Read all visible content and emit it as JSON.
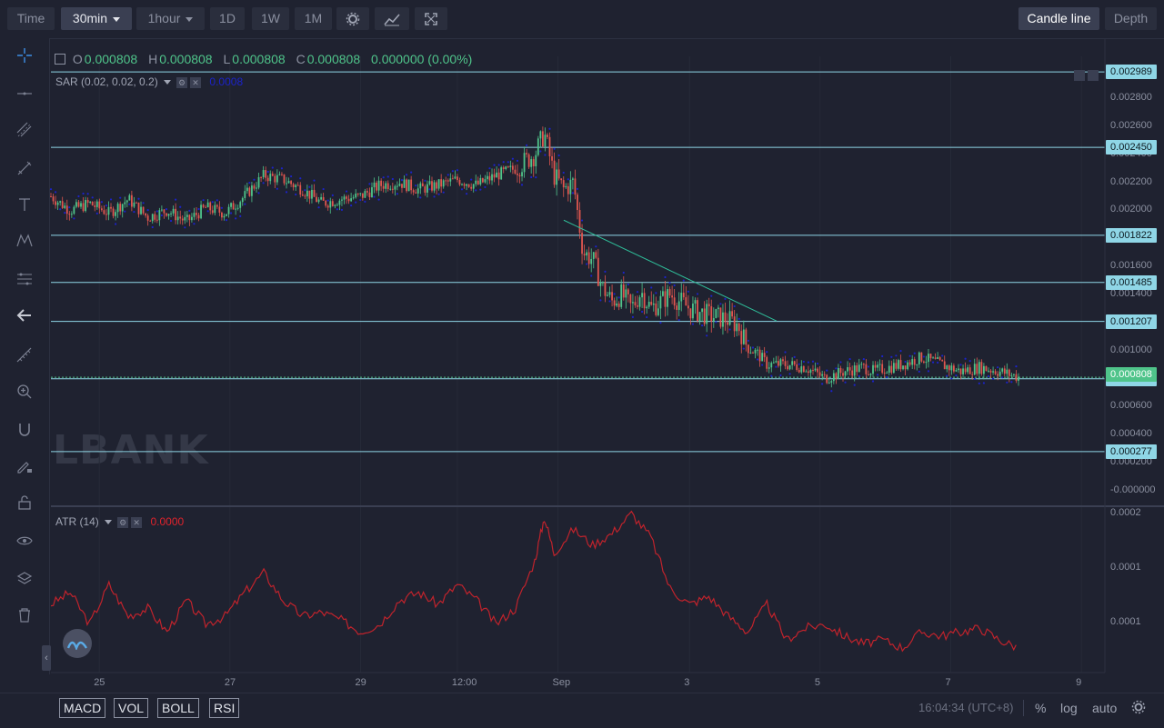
{
  "toolbar": {
    "time_label": "Time",
    "interval_30min": "30min",
    "interval_1hour": "1hour",
    "btn_1d": "1D",
    "btn_1w": "1W",
    "btn_1m": "1M",
    "candle_line": "Candle line",
    "depth": "Depth"
  },
  "ohlc": {
    "o_label": "O",
    "o_value": "0.000808",
    "h_label": "H",
    "h_value": "0.000808",
    "l_label": "L",
    "l_value": "0.000808",
    "c_label": "C",
    "c_value": "0.000808",
    "change": "0.000000 (0.00%)"
  },
  "indicators": {
    "sar_label": "SAR (0.02, 0.02, 0.2)",
    "sar_value": "0.0008",
    "atr_label": "ATR (14)",
    "atr_value": "0.0000"
  },
  "logo_text": "LBANK",
  "colors": {
    "up": "#4fc48a",
    "down": "#e0564f",
    "sar": "#1c23c9",
    "level_line": "#8fd6e6",
    "trend_line": "#2fbf9a",
    "atr": "#c0232c"
  },
  "chart_data": [
    {
      "type": "candlestick",
      "x_tick_labels": [
        "25",
        "27",
        "29",
        "12:00",
        "Sep",
        "3",
        "5",
        "7",
        "9"
      ],
      "y_tick_labels": [
        "0.002800",
        "0.002600",
        "0.002400",
        "0.002200",
        "0.002000",
        "0.001600",
        "0.001400",
        "0.001000",
        "0.000600",
        "0.000400",
        "0.000200",
        "-0.000000"
      ],
      "ylim": [
        -0.0001,
        0.0031
      ],
      "level_lines": [
        "0.002989",
        "0.002450",
        "0.001822",
        "0.001485",
        "0.001207",
        "0.000797",
        "0.000277"
      ],
      "current_price": "0.000808",
      "trend_line": {
        "from": [
          0.53,
          0.00193
        ],
        "to": [
          0.75,
          0.00121
        ]
      },
      "close_profile": {
        "x": [
          0.0,
          0.02,
          0.04,
          0.06,
          0.08,
          0.1,
          0.12,
          0.14,
          0.16,
          0.18,
          0.2,
          0.22,
          0.24,
          0.26,
          0.28,
          0.3,
          0.32,
          0.34,
          0.36,
          0.38,
          0.4,
          0.42,
          0.44,
          0.46,
          0.48,
          0.5,
          0.51,
          0.52,
          0.53,
          0.54,
          0.55,
          0.56,
          0.57,
          0.58,
          0.59,
          0.6,
          0.61,
          0.62,
          0.64,
          0.66,
          0.68,
          0.7,
          0.71,
          0.72,
          0.73,
          0.74,
          0.76,
          0.78,
          0.8,
          0.82,
          0.84,
          0.85,
          0.86,
          0.88,
          0.9,
          0.92,
          0.94,
          0.96,
          0.98,
          1.0
        ],
        "close": [
          0.0021,
          0.002,
          0.00205,
          0.00198,
          0.00208,
          0.00195,
          0.002,
          0.00192,
          0.00202,
          0.00198,
          0.0021,
          0.00225,
          0.00222,
          0.00215,
          0.00205,
          0.00208,
          0.0021,
          0.00218,
          0.0022,
          0.00215,
          0.00218,
          0.00222,
          0.00218,
          0.00225,
          0.0023,
          0.0024,
          0.00255,
          0.00225,
          0.00215,
          0.0022,
          0.0017,
          0.00165,
          0.00145,
          0.00135,
          0.0014,
          0.0013,
          0.00142,
          0.0013,
          0.0014,
          0.0013,
          0.00125,
          0.00122,
          0.00118,
          0.00102,
          0.00098,
          0.0009,
          0.0009,
          0.00088,
          0.0008,
          0.00085,
          0.00088,
          0.00085,
          0.00087,
          0.0009,
          0.00095,
          0.0009,
          0.00085,
          0.00088,
          0.00085,
          0.00081
        ]
      }
    },
    {
      "type": "line",
      "name": "ATR (14)",
      "y_tick_labels": [
        "0.0002",
        "0.0001",
        "0.0001"
      ],
      "ylim": [
        1e-05,
        0.0002
      ],
      "x": [
        0.0,
        0.02,
        0.04,
        0.06,
        0.08,
        0.1,
        0.12,
        0.14,
        0.16,
        0.18,
        0.2,
        0.22,
        0.24,
        0.26,
        0.28,
        0.3,
        0.32,
        0.34,
        0.36,
        0.38,
        0.4,
        0.42,
        0.44,
        0.46,
        0.48,
        0.5,
        0.51,
        0.52,
        0.54,
        0.56,
        0.58,
        0.6,
        0.62,
        0.64,
        0.66,
        0.68,
        0.7,
        0.72,
        0.74,
        0.76,
        0.78,
        0.8,
        0.82,
        0.84,
        0.86,
        0.88,
        0.9,
        0.92,
        0.94,
        0.96,
        0.98,
        1.0
      ],
      "values": [
        8.5e-05,
        0.0001,
        6e-05,
        0.00011,
        7e-05,
        8e-05,
        5e-05,
        9e-05,
        6e-05,
        7e-05,
        0.0001,
        0.000125,
        9e-05,
        7e-05,
        7.5e-05,
        6.5e-05,
        5e-05,
        6e-05,
        9e-05,
        0.0001,
        8.5e-05,
        0.00011,
        9e-05,
        6e-05,
        8e-05,
        0.00014,
        0.000195,
        0.00015,
        0.00018,
        0.00016,
        0.000175,
        0.0002,
        0.00017,
        0.000105,
        8.5e-05,
        9.5e-05,
        7e-05,
        5e-05,
        8.5e-05,
        4e-05,
        5.5e-05,
        6e-05,
        4.5e-05,
        3.5e-05,
        4e-05,
        3e-05,
        5e-05,
        4.5e-05,
        5e-05,
        5.5e-05,
        4e-05,
        3e-05
      ]
    }
  ],
  "bottombar": {
    "btn_macd": "MACD",
    "btn_vol": "VOL",
    "btn_boll": "BOLL",
    "btn_rsi": "RSI",
    "time_text": "16:04:34 (UTC+8)",
    "pct": "%",
    "log": "log",
    "auto": "auto"
  }
}
